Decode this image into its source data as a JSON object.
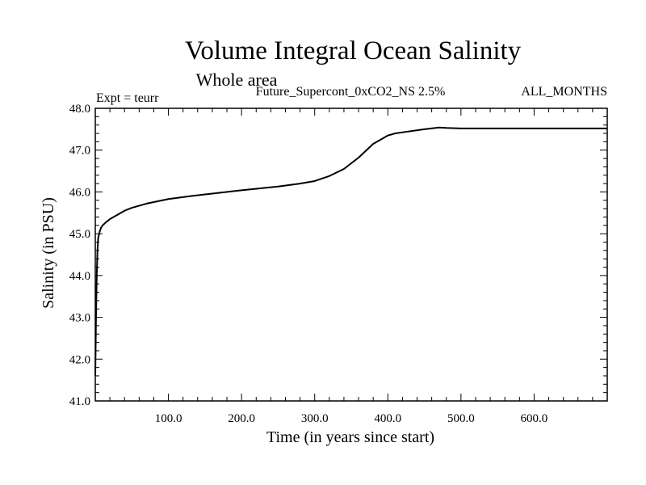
{
  "chart_data": {
    "type": "line",
    "title": "Volume Integral Ocean Salinity",
    "subtitle": "Whole area",
    "experiment_label": "Expt = teurr",
    "run_label": "Future_Supercont_0xCO2_NS 2.5%",
    "months_label": "ALL_MONTHS",
    "xlabel": "Time (in years since start)",
    "ylabel": "Salinity (in PSU)",
    "xlim": [
      0,
      700
    ],
    "ylim": [
      41.0,
      48.0
    ],
    "x_ticks": [
      100,
      200,
      300,
      400,
      500,
      600
    ],
    "x_tick_labels": [
      "100.0",
      "200.0",
      "300.0",
      "400.0",
      "500.0",
      "600.0"
    ],
    "y_ticks": [
      41,
      42,
      43,
      44,
      45,
      46,
      47,
      48
    ],
    "y_tick_labels": [
      "41.0",
      "42.0",
      "43.0",
      "44.0",
      "45.0",
      "46.0",
      "47.0",
      "48.0"
    ],
    "grid": false,
    "line_color": "#000000",
    "series": [
      {
        "x": [
          0,
          1,
          2,
          3,
          4,
          6,
          8,
          10,
          15,
          20,
          30,
          40,
          50,
          70,
          100,
          130,
          160,
          200,
          250,
          280,
          300,
          320,
          340,
          360,
          380,
          400,
          410,
          430,
          450,
          470,
          480,
          500,
          550,
          600,
          650,
          700
        ],
        "values": [
          41.6,
          43.0,
          44.0,
          44.6,
          44.9,
          45.05,
          45.15,
          45.2,
          45.28,
          45.35,
          45.45,
          45.55,
          45.62,
          45.72,
          45.83,
          45.9,
          45.96,
          46.04,
          46.13,
          46.2,
          46.26,
          46.38,
          46.55,
          46.82,
          47.15,
          47.35,
          47.4,
          47.45,
          47.5,
          47.54,
          47.53,
          47.52,
          47.52,
          47.52,
          47.52,
          47.52
        ]
      }
    ]
  }
}
